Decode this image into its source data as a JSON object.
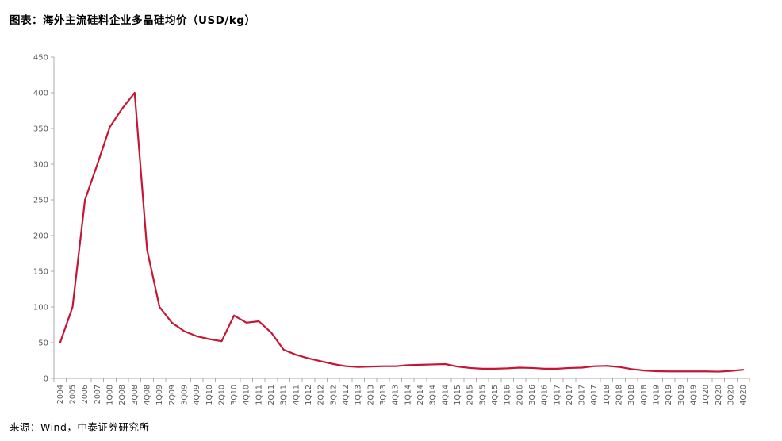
{
  "header": {
    "title": "图表：海外主流硅料企业多晶硅均价（USD/kg）"
  },
  "footer": {
    "source": "来源：Wind，中泰证券研究所"
  },
  "colors": {
    "line": "#c61635",
    "axis": "#ababab",
    "tick_label": "#595959",
    "background": "#ffffff"
  },
  "chart_data": {
    "type": "line",
    "title": "海外主流硅料企业多晶硅均价（USD/kg）",
    "xlabel": "",
    "ylabel": "",
    "ylim": [
      0,
      450
    ],
    "ytick_interval": 50,
    "ytick_labels": [
      "0",
      "50",
      "100",
      "150",
      "200",
      "250",
      "300",
      "350",
      "400",
      "450"
    ],
    "grid": false,
    "legend_position": "none",
    "categories": [
      "2004",
      "2005",
      "2006",
      "2007",
      "1Q08",
      "2Q08",
      "3Q08",
      "4Q08",
      "1Q09",
      "2Q09",
      "3Q09",
      "4Q09",
      "1Q10",
      "2Q10",
      "3Q10",
      "4Q10",
      "1Q11",
      "2Q11",
      "3Q11",
      "4Q11",
      "1Q12",
      "2Q12",
      "3Q12",
      "4Q12",
      "1Q13",
      "2Q13",
      "3Q13",
      "4Q13",
      "1Q14",
      "2Q14",
      "3Q14",
      "4Q14",
      "1Q15",
      "2Q15",
      "3Q15",
      "4Q15",
      "1Q16",
      "2Q16",
      "3Q16",
      "4Q16",
      "1Q17",
      "2Q17",
      "3Q17",
      "4Q17",
      "1Q18",
      "2Q18",
      "3Q18",
      "4Q18",
      "1Q19",
      "2Q19",
      "3Q19",
      "4Q19",
      "1Q20",
      "2Q20",
      "3Q20",
      "4Q20"
    ],
    "series": [
      {
        "name": "海外主流硅料企业多晶硅均价",
        "color": "#c61635",
        "values": [
          50,
          100,
          250,
          300,
          352,
          378,
          400,
          180,
          100,
          78,
          66,
          59,
          55,
          52,
          88,
          78,
          80,
          64,
          40,
          33,
          28,
          24,
          20,
          17,
          16,
          16.5,
          17,
          17,
          18.5,
          19,
          19.5,
          20,
          16.5,
          14.5,
          13.5,
          13.5,
          14,
          15,
          14.5,
          13.5,
          13.5,
          14.5,
          15,
          17,
          17.5,
          16,
          13,
          11,
          10,
          9.7,
          9.7,
          9.7,
          9.7,
          9.4,
          10.4,
          12
        ]
      }
    ]
  }
}
